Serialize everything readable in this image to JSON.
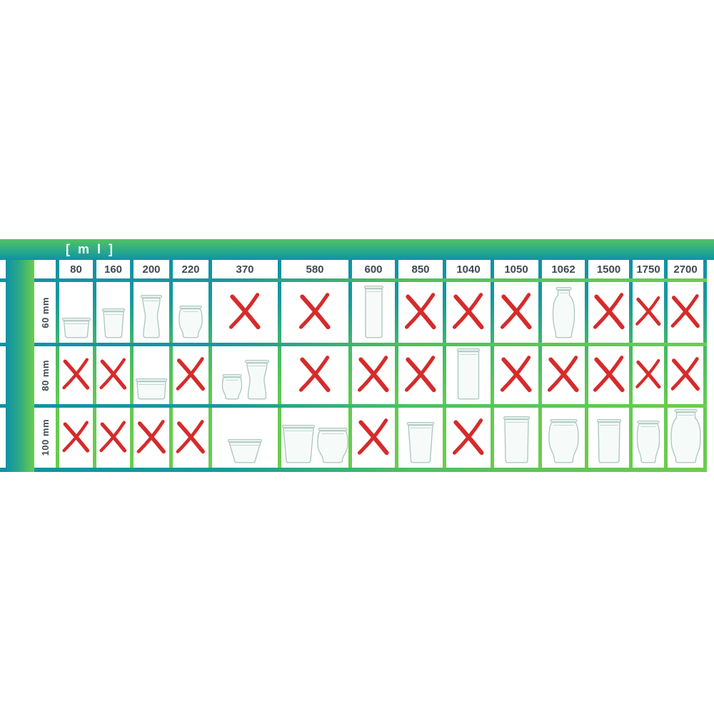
{
  "banner": {
    "unit_label": "[ m l ]"
  },
  "colors": {
    "teal": "#0e92a5",
    "green": "#6bcd4c",
    "banner_green": "#52c162",
    "red_x": "#d62b2b",
    "label_text": "#3e4a54",
    "jar_outline": "#aec9c2",
    "jar_fill": "#f6fbf9"
  },
  "table": {
    "column_headers": [
      "80",
      "160",
      "200",
      "220",
      "370",
      "580",
      "600",
      "850",
      "1040",
      "1050",
      "1062",
      "1500",
      "1750",
      "2700"
    ],
    "row_labels": [
      "60 mm",
      "80 mm",
      "100 mm"
    ],
    "rows": [
      {
        "label": "60 mm",
        "cells": [
          [
            "mini-flat-jar"
          ],
          [
            "small-mold-jar"
          ],
          [
            "deli-jar"
          ],
          [
            "small-tulip-jar"
          ],
          "x",
          "x",
          [
            "slim-cylinder-jar"
          ],
          "x",
          "x",
          "x",
          [
            "juice-bottle-jar"
          ],
          "x",
          "x",
          "x"
        ]
      },
      {
        "label": "80 mm",
        "cells": [
          "x",
          "x",
          [
            "wide-flat-jar"
          ],
          "x",
          [
            "mini-tulip-jar",
            "medium-deli-jar"
          ],
          "x",
          "x",
          "x",
          [
            "tall-cylinder-jar"
          ],
          "x",
          "x",
          "x",
          "x",
          "x"
        ]
      },
      {
        "label": "100 mm",
        "cells": [
          "x",
          "x",
          "x",
          "x",
          [
            "flared-bowl-jar"
          ],
          [
            "medium-mold-jar",
            "medium-tulip-jar"
          ],
          "x",
          [
            "tall-mold-jar"
          ],
          "x",
          [
            "cylinder-jar"
          ],
          [
            "large-tulip-jar"
          ],
          [
            "medium-cylinder-jar"
          ],
          [
            "slim-tulip-jar"
          ],
          [
            "large-bottle-jar"
          ]
        ]
      }
    ]
  },
  "chart_data": {
    "type": "table",
    "title": "[ m l ]",
    "categories": [
      "80",
      "160",
      "200",
      "220",
      "370",
      "580",
      "600",
      "850",
      "1040",
      "1050",
      "1062",
      "1500",
      "1750",
      "2700"
    ],
    "rows": [
      "60 mm",
      "80 mm",
      "100 mm"
    ],
    "compatible": [
      [
        true,
        true,
        true,
        true,
        false,
        false,
        true,
        false,
        false,
        false,
        true,
        false,
        false,
        false
      ],
      [
        false,
        false,
        true,
        false,
        true,
        false,
        false,
        false,
        true,
        false,
        false,
        false,
        false,
        false
      ],
      [
        false,
        false,
        false,
        false,
        true,
        true,
        false,
        true,
        false,
        true,
        true,
        true,
        true,
        true
      ]
    ],
    "legend": "cells show a glass jar image when the volume (ml) exists for that rim diameter (mm), otherwise a red X"
  }
}
